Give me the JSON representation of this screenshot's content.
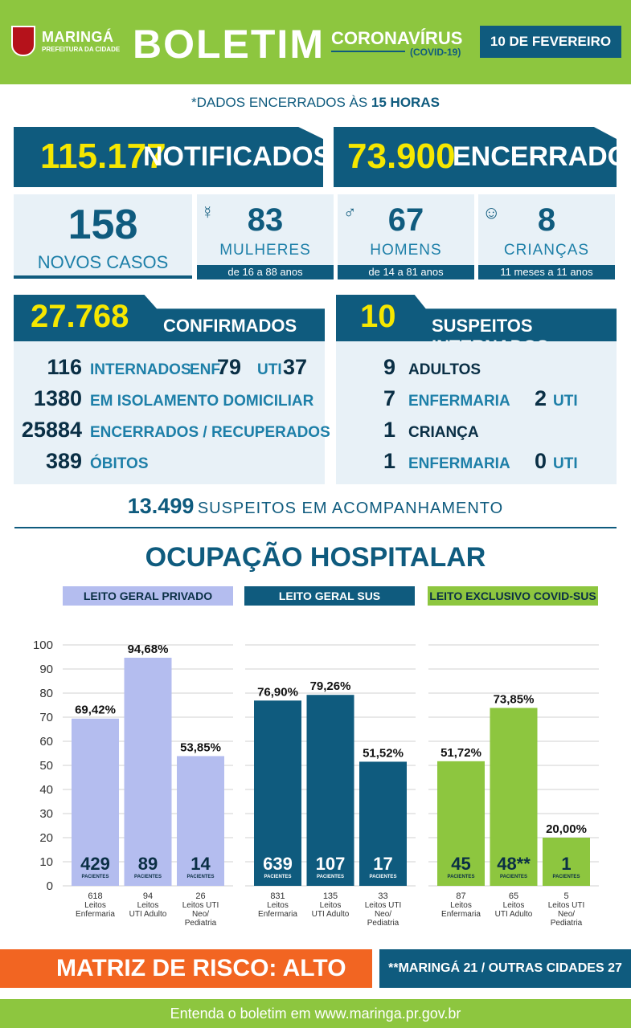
{
  "header": {
    "city": "MARINGÁ",
    "city_sub": "PREFEITURA DA CIDADE",
    "title": "BOLETIM",
    "topic": "CORONAVÍRUS",
    "topic_sub": "(COVID-19)",
    "date": "10 DE FEVEREIRO"
  },
  "closing_prefix": "*DADOS ENCERRADOS ÀS ",
  "closing_hour": "15 HORAS",
  "notified": {
    "value": "115.177",
    "label": "NOTIFICADOS"
  },
  "closed": {
    "value": "73.900",
    "label": "ENCERRADOS"
  },
  "new_cases": {
    "value": "158",
    "label": "NOVOS CASOS"
  },
  "women": {
    "value": "83",
    "label": "MULHERES",
    "range": "de 16 a 88 anos",
    "icon": "woman-icon"
  },
  "men": {
    "value": "67",
    "label": "HOMENS",
    "range": "de 14 a 81 anos",
    "icon": "man-icon"
  },
  "children": {
    "value": "8",
    "label": "CRIANÇAS",
    "range": "11 meses a 11 anos",
    "icon": "baby-icon"
  },
  "confirmed": {
    "value": "27.768",
    "label": "CONFIRMADOS",
    "hospitalized": "116",
    "hospitalized_label": "INTERNADOS",
    "enf_label": "ENF.",
    "enf": "79",
    "uti_label": "UTI",
    "uti": "37",
    "isolation": "1380",
    "isolation_label": "EM ISOLAMENTO DOMICILIAR",
    "recovered": "25884",
    "recovered_label": "ENCERRADOS / RECUPERADOS",
    "deaths": "389",
    "deaths_label": "ÓBITOS"
  },
  "suspects": {
    "value": "10",
    "label": "SUSPEITOS INTERNADOS",
    "adults": "9",
    "adults_label": "ADULTOS",
    "adult_ward": "7",
    "adult_ward_label": "ENFERMARIA",
    "adult_uti": "2",
    "adult_uti_label": "UTI",
    "children": "1",
    "children_label": "CRIANÇA",
    "child_ward": "1",
    "child_ward_label": "ENFERMARIA",
    "child_uti": "0",
    "child_uti_label": "UTI"
  },
  "monitoring": {
    "value": "13.499",
    "label": "SUSPEITOS EM ACOMPANHAMENTO"
  },
  "occupancy_title": "OCUPAÇÃO HOSPITALAR",
  "chart_data": {
    "type": "bar",
    "ylim": [
      0,
      100
    ],
    "yticks": [
      "0",
      "10",
      "20",
      "30",
      "40",
      "50",
      "60",
      "70",
      "80",
      "90",
      "100"
    ],
    "grid": true,
    "patients_label": "PACIENTES",
    "groups": [
      {
        "name": "LEITO GERAL PRIVADO",
        "color": "#b4bdef",
        "bars": [
          {
            "value": 69.42,
            "label": "69,42%",
            "patients": "429",
            "beds": "618",
            "cat": [
              "Leitos",
              "Enfermaria"
            ]
          },
          {
            "value": 94.68,
            "label": "94,68%",
            "patients": "89",
            "beds": "94",
            "cat": [
              "Leitos",
              "UTI Adulto"
            ]
          },
          {
            "value": 53.85,
            "label": "53,85%",
            "patients": "14",
            "beds": "26",
            "cat": [
              "Leitos UTI",
              "Neo/",
              "Pediatria"
            ]
          }
        ]
      },
      {
        "name": "LEITO GERAL SUS",
        "color": "#0f5b7e",
        "bars": [
          {
            "value": 76.9,
            "label": "76,90%",
            "patients": "639",
            "beds": "831",
            "cat": [
              "Leitos",
              "Enfermaria"
            ]
          },
          {
            "value": 79.26,
            "label": "79,26%",
            "patients": "107",
            "beds": "135",
            "cat": [
              "Leitos",
              "UTI Adulto"
            ]
          },
          {
            "value": 51.52,
            "label": "51,52%",
            "patients": "17",
            "beds": "33",
            "cat": [
              "Leitos UTI",
              "Neo/",
              "Pediatria"
            ]
          }
        ]
      },
      {
        "name": "LEITO EXCLUSIVO COVID-SUS",
        "color": "#8dc63f",
        "bars": [
          {
            "value": 51.72,
            "label": "51,72%",
            "patients": "45",
            "beds": "87",
            "cat": [
              "Leitos",
              "Enfermaria"
            ]
          },
          {
            "value": 73.85,
            "label": "73,85%",
            "patients": "48**",
            "beds": "65",
            "cat": [
              "Leitos",
              "UTI Adulto"
            ]
          },
          {
            "value": 20.0,
            "label": "20,00%",
            "patients": "1",
            "beds": "5",
            "cat": [
              "Leitos UTI",
              "Neo/",
              "Pediatria"
            ]
          }
        ]
      }
    ]
  },
  "risk": "MATRIZ DE RISCO: ALTO",
  "cities": "**MARINGÁ 21 / OUTRAS CIDADES 27",
  "footer": "Entenda o boletim em www.maringa.pr.gov.br",
  "colors": {
    "blue": "#0f5b7e",
    "green": "#8dc63f",
    "yellow": "#f6e700",
    "orange": "#f26522",
    "lavender": "#b4bdef"
  }
}
